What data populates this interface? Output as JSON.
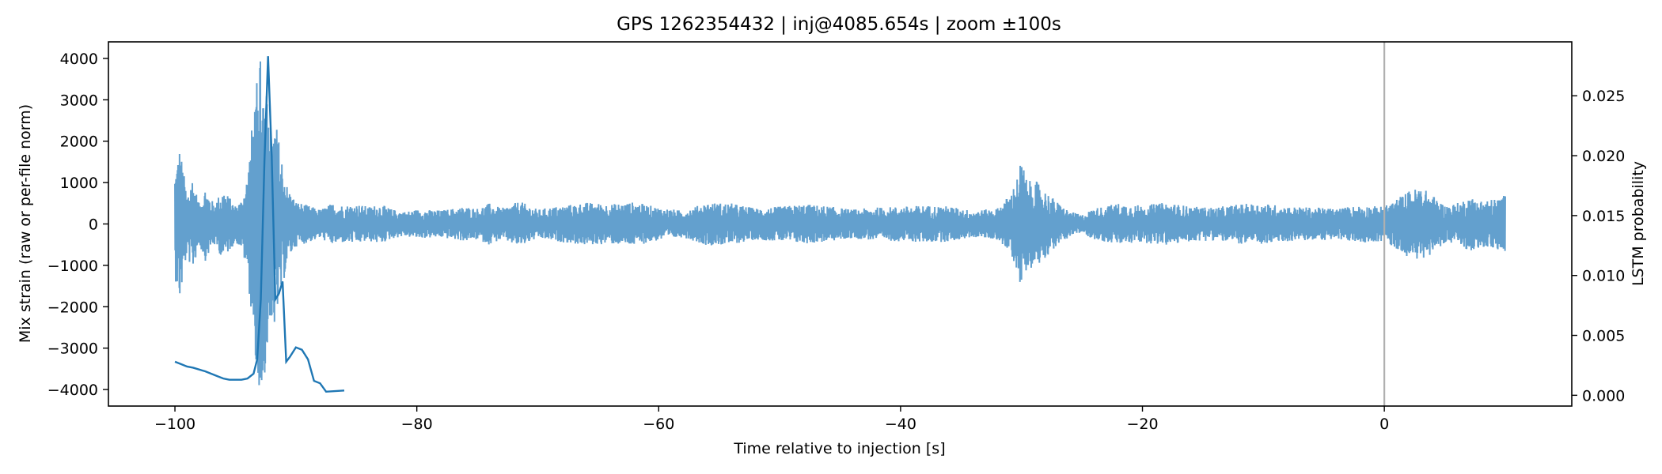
{
  "chart_data": {
    "type": "line",
    "title": "GPS 1262354432 | inj@4085.654s | zoom ±100s",
    "xlabel": "Time relative to injection [s]",
    "ylabel_left": "Mix strain (raw or per-file norm)",
    "ylabel_right": "LSTM probability",
    "xlim": [
      -105.5,
      15.5
    ],
    "ylim_left": [
      -4400,
      4400
    ],
    "ylim_right": [
      -0.0009,
      0.0295
    ],
    "x_ticks": [
      -100,
      -80,
      -60,
      -40,
      -20,
      0
    ],
    "x_tick_labels": [
      "−100",
      "−80",
      "−60",
      "−40",
      "−20",
      "0"
    ],
    "y_left_ticks": [
      -4000,
      -3000,
      -2000,
      -1000,
      0,
      1000,
      2000,
      3000,
      4000
    ],
    "y_left_tick_labels": [
      "−4000",
      "−3000",
      "−2000",
      "−1000",
      "0",
      "1000",
      "2000",
      "3000",
      "4000"
    ],
    "y_right_ticks": [
      0.0,
      0.005,
      0.01,
      0.015,
      0.02,
      0.025
    ],
    "y_right_tick_labels": [
      "0.000",
      "0.005",
      "0.010",
      "0.015",
      "0.020",
      "0.025"
    ],
    "grid": false,
    "injection_marker_x": 0,
    "strain_series": {
      "color": "#5b9bcb",
      "x_range": [
        -100,
        10
      ],
      "envelope": [
        [
          -100.0,
          1300
        ],
        [
          -99.6,
          1900
        ],
        [
          -99.0,
          700
        ],
        [
          -98.6,
          1200
        ],
        [
          -98.0,
          500
        ],
        [
          -97.5,
          900
        ],
        [
          -96.8,
          500
        ],
        [
          -96.0,
          850
        ],
        [
          -95.5,
          650
        ],
        [
          -95.0,
          450
        ],
        [
          -94.5,
          600
        ],
        [
          -94.0,
          1200
        ],
        [
          -93.5,
          2800
        ],
        [
          -93.0,
          4000
        ],
        [
          -92.6,
          3900
        ],
        [
          -92.2,
          2200
        ],
        [
          -91.7,
          2550
        ],
        [
          -91.2,
          1700
        ],
        [
          -90.7,
          900
        ],
        [
          -90.0,
          550
        ],
        [
          -89.0,
          450
        ],
        [
          -88.0,
          350
        ],
        [
          -87.0,
          500
        ],
        [
          -86.0,
          450
        ],
        [
          -85.0,
          480
        ],
        [
          -84.0,
          420
        ],
        [
          -83.0,
          480
        ],
        [
          -82.0,
          350
        ],
        [
          -81.0,
          300
        ],
        [
          -80.0,
          350
        ],
        [
          -78.0,
          330
        ],
        [
          -76.0,
          420
        ],
        [
          -75.0,
          380
        ],
        [
          -74.0,
          500
        ],
        [
          -73.0,
          380
        ],
        [
          -71.5,
          550
        ],
        [
          -70.0,
          350
        ],
        [
          -69.0,
          400
        ],
        [
          -67.0,
          480
        ],
        [
          -66.0,
          520
        ],
        [
          -64.0,
          480
        ],
        [
          -62.0,
          530
        ],
        [
          -60.0,
          400
        ],
        [
          -58.0,
          320
        ],
        [
          -56.0,
          520
        ],
        [
          -54.0,
          500
        ],
        [
          -52.0,
          380
        ],
        [
          -50.0,
          420
        ],
        [
          -48.0,
          480
        ],
        [
          -46.0,
          430
        ],
        [
          -44.0,
          350
        ],
        [
          -42.0,
          400
        ],
        [
          -40.0,
          420
        ],
        [
          -38.0,
          450
        ],
        [
          -36.0,
          430
        ],
        [
          -34.0,
          320
        ],
        [
          -32.0,
          380
        ],
        [
          -31.0,
          700
        ],
        [
          -30.5,
          1000
        ],
        [
          -30.0,
          1580
        ],
        [
          -29.5,
          1000
        ],
        [
          -29.0,
          1100
        ],
        [
          -28.0,
          800
        ],
        [
          -27.0,
          520
        ],
        [
          -26.0,
          300
        ],
        [
          -25.0,
          220
        ],
        [
          -24.0,
          380
        ],
        [
          -22.0,
          500
        ],
        [
          -20.0,
          450
        ],
        [
          -18.0,
          520
        ],
        [
          -16.0,
          420
        ],
        [
          -14.0,
          400
        ],
        [
          -12.0,
          480
        ],
        [
          -10.0,
          500
        ],
        [
          -8.0,
          420
        ],
        [
          -6.0,
          400
        ],
        [
          -4.0,
          380
        ],
        [
          -2.0,
          450
        ],
        [
          0.0,
          420
        ],
        [
          2.0,
          800
        ],
        [
          3.0,
          900
        ],
        [
          4.0,
          700
        ],
        [
          5.0,
          450
        ],
        [
          6.0,
          500
        ],
        [
          7.0,
          650
        ],
        [
          8.0,
          580
        ],
        [
          9.0,
          600
        ],
        [
          10.0,
          700
        ]
      ]
    },
    "lstm_series": {
      "color": "#1f77b4",
      "x": [
        -100.0,
        -99.5,
        -99.0,
        -98.5,
        -97.5,
        -96.5,
        -96.0,
        -95.5,
        -94.5,
        -94.0,
        -93.5,
        -93.2,
        -92.9,
        -92.6,
        -92.3,
        -92.0,
        -91.7,
        -91.4,
        -91.1,
        -90.8,
        -90.5,
        -90.0,
        -89.5,
        -89.0,
        -88.5,
        -88.0,
        -87.5,
        -86.0
      ],
      "values": [
        0.0028,
        0.0026,
        0.0024,
        0.0023,
        0.002,
        0.0016,
        0.0014,
        0.0013,
        0.0013,
        0.0014,
        0.0018,
        0.003,
        0.008,
        0.0195,
        0.0283,
        0.02,
        0.008,
        0.0085,
        0.0095,
        0.0028,
        0.0032,
        0.004,
        0.0038,
        0.003,
        0.0012,
        0.001,
        0.0003,
        0.0004
      ]
    }
  }
}
